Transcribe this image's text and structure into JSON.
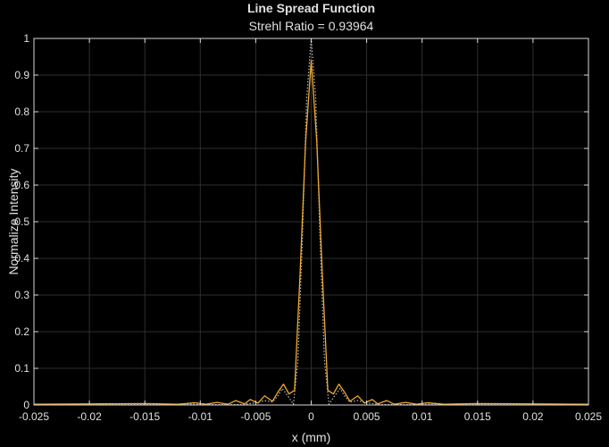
{
  "chart_data": {
    "type": "line",
    "title": "Line Spread Function",
    "subtitle": "Strehl Ratio = 0.93964",
    "xlabel": "x (mm)",
    "ylabel": "Normalize Intensity",
    "xlim": [
      -0.025,
      0.025
    ],
    "ylim": [
      0,
      1
    ],
    "x_ticks": [
      -0.025,
      -0.02,
      -0.015,
      -0.01,
      -0.005,
      0,
      0.005,
      0.01,
      0.015,
      0.02,
      0.025
    ],
    "x_tick_labels": [
      "-0.025",
      "-0.02",
      "-0.015",
      "-0.01",
      "-0.005",
      "0",
      "0.005",
      "0.01",
      "0.015",
      "0.02",
      "0.025"
    ],
    "y_ticks": [
      0,
      0.1,
      0.2,
      0.3,
      0.4,
      0.5,
      0.6,
      0.7,
      0.8,
      0.9,
      1
    ],
    "y_tick_labels": [
      "0",
      "0.1",
      "0.2",
      "0.3",
      "0.4",
      "0.5",
      "0.6",
      "0.7",
      "0.8",
      "0.9",
      "1"
    ],
    "grid": true,
    "series": [
      {
        "style": "solid",
        "color": "#f0a830",
        "x": [
          -0.025,
          -0.02,
          -0.015,
          -0.012,
          -0.0105,
          -0.0095,
          -0.0085,
          -0.0075,
          -0.0068,
          -0.006,
          -0.0055,
          -0.0048,
          -0.0042,
          -0.0035,
          -0.003,
          -0.0025,
          -0.002,
          -0.0015,
          -0.001,
          -0.0005,
          0,
          0.0005,
          0.001,
          0.0015,
          0.002,
          0.0025,
          0.003,
          0.0035,
          0.0042,
          0.0048,
          0.0055,
          0.006,
          0.0068,
          0.0075,
          0.0085,
          0.0095,
          0.0105,
          0.012,
          0.015,
          0.02,
          0.025
        ],
        "y": [
          0.002,
          0.003,
          0.004,
          0.002,
          0.006,
          0.002,
          0.007,
          0.002,
          0.012,
          0.003,
          0.015,
          0.005,
          0.025,
          0.01,
          0.035,
          0.057,
          0.03,
          0.04,
          0.36,
          0.72,
          0.94,
          0.72,
          0.36,
          0.04,
          0.03,
          0.057,
          0.035,
          0.01,
          0.025,
          0.005,
          0.015,
          0.003,
          0.012,
          0.002,
          0.007,
          0.002,
          0.006,
          0.002,
          0.004,
          0.003,
          0.002
        ]
      },
      {
        "style": "dotted",
        "color": "#bbbbbb",
        "x": [
          -0.025,
          -0.012,
          -0.009,
          -0.0062,
          -0.005,
          -0.0042,
          -0.0035,
          -0.003,
          -0.0026,
          -0.002,
          -0.0016,
          -0.0012,
          -0.0008,
          -0.0004,
          0,
          0.0004,
          0.0008,
          0.0012,
          0.0016,
          0.002,
          0.0026,
          0.003,
          0.0035,
          0.0042,
          0.005,
          0.0062,
          0.009,
          0.012,
          0.025
        ],
        "y": [
          0.001,
          0.002,
          0.001,
          0.001,
          0.006,
          0.012,
          0.008,
          0.025,
          0.045,
          0.02,
          0.002,
          0.12,
          0.45,
          0.84,
          1.0,
          0.84,
          0.45,
          0.12,
          0.002,
          0.02,
          0.045,
          0.025,
          0.008,
          0.012,
          0.006,
          0.001,
          0.001,
          0.002,
          0.001
        ]
      }
    ]
  }
}
